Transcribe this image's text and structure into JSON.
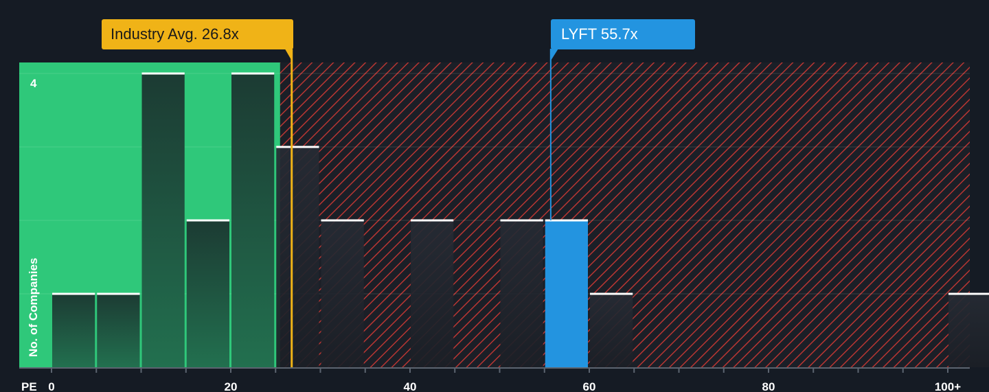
{
  "chart_data": {
    "type": "bar",
    "xlabel": "PE",
    "ylabel": "No. of Companies",
    "x_ticks": [
      {
        "value": 0,
        "label": "0"
      },
      {
        "value": 20,
        "label": "20"
      },
      {
        "value": 40,
        "label": "40"
      },
      {
        "value": 60,
        "label": "60"
      },
      {
        "value": 80,
        "label": "80"
      },
      {
        "value": 100,
        "label": "100+"
      }
    ],
    "y_tick_label": {
      "value": 4,
      "label": "4"
    },
    "ylim": [
      0,
      4.15
    ],
    "bin_width": 5,
    "bars": [
      {
        "start": 0,
        "end": 5,
        "value": 1
      },
      {
        "start": 5,
        "end": 10,
        "value": 1
      },
      {
        "start": 10,
        "end": 15,
        "value": 4
      },
      {
        "start": 15,
        "end": 20,
        "value": 2
      },
      {
        "start": 20,
        "end": 25,
        "value": 4
      },
      {
        "start": 25,
        "end": 30,
        "value": 3
      },
      {
        "start": 30,
        "end": 35,
        "value": 2
      },
      {
        "start": 40,
        "end": 45,
        "value": 2
      },
      {
        "start": 50,
        "end": 55,
        "value": 2
      },
      {
        "start": 55,
        "end": 60,
        "value": 2,
        "highlight": true
      },
      {
        "start": 60,
        "end": 65,
        "value": 1
      },
      {
        "start": 100,
        "end": 105,
        "value": 1
      }
    ],
    "fair_region_end": 25.5,
    "industry_avg": {
      "value": 26.8,
      "label": "Industry Avg. 26.8x",
      "color": "#f0b317"
    },
    "company": {
      "value": 55.7,
      "label": "LYFT 55.7x",
      "color": "#2394e0"
    },
    "colors": {
      "background": "#151b24",
      "fair_region": "#2fc87a",
      "bar_in_fair": "#1d4a3a",
      "bar_expensive": "#222a32",
      "hatch": "#c0392b",
      "bar_top": "#ffffff"
    }
  }
}
